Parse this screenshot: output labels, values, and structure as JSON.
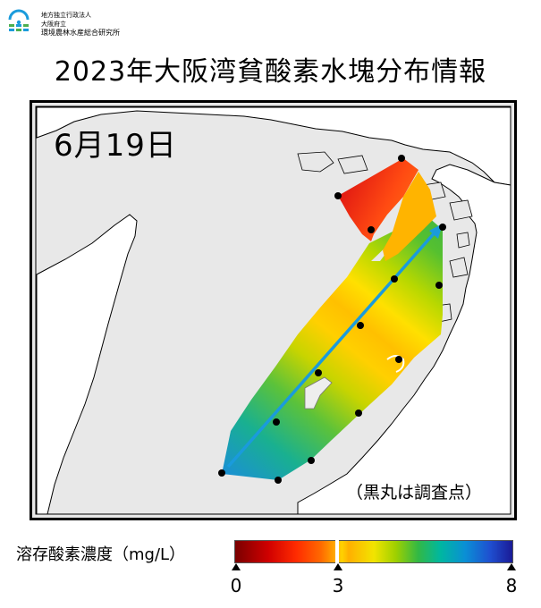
{
  "header": {
    "org_line1": "地方独立行政法人",
    "org_line2": "大阪府立",
    "org_line3": "環境農林水産総合研究所",
    "title": "2023年大阪湾貧酸素水塊分布情報"
  },
  "map": {
    "date": "6月19日",
    "note": "（黒丸は調査点）",
    "station_color": "#000000",
    "arrow_color": "#1a9bdc",
    "land_color": "#ffffff",
    "sea_color": "#e8e8e8"
  },
  "legend": {
    "label": "溶存酸素濃度（mg/L）",
    "ticks": [
      "0",
      "3",
      "8"
    ],
    "tick_values": [
      0,
      3,
      8
    ],
    "range": [
      0,
      8
    ],
    "threshold": 3
  },
  "icons": {
    "logo": "organization-logo-icon",
    "station": "station-dot-icon",
    "arrow": "transect-arrow-icon"
  }
}
